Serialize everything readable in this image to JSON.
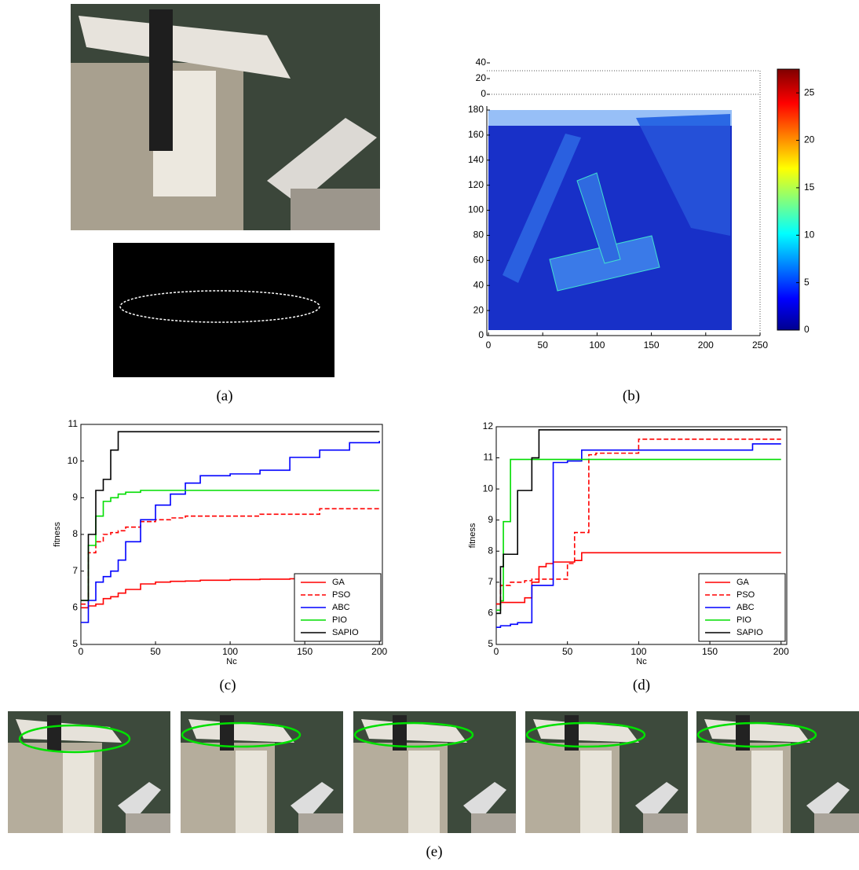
{
  "captions": [
    "(a)",
    "(b)",
    "(c)",
    "(d)",
    "(e)"
  ],
  "chart_data": [
    {
      "type": "surface",
      "xlim": [
        0,
        250
      ],
      "xticks": [
        0,
        50,
        100,
        150,
        200,
        250
      ],
      "ylim": [
        0,
        180
      ],
      "yticks": [
        0,
        20,
        40,
        60,
        80,
        100,
        120,
        140,
        160,
        180
      ],
      "zlim": [
        0,
        40
      ],
      "zticks": [
        0,
        20,
        40
      ],
      "clim": [
        0,
        27.5
      ],
      "cticks": [
        0,
        5,
        10,
        15,
        20,
        25
      ],
      "colormap": "jet"
    },
    {
      "type": "line",
      "step": true,
      "xlabel": "Nc",
      "ylabel": "fitness",
      "xlim": [
        0,
        202
      ],
      "xticks": [
        0,
        50,
        100,
        150,
        200
      ],
      "ylim": [
        5,
        11
      ],
      "yticks": [
        5,
        6,
        7,
        8,
        9,
        10,
        11
      ],
      "legend": "lower right",
      "x": [
        0,
        5,
        10,
        15,
        20,
        25,
        30,
        40,
        50,
        60,
        70,
        80,
        100,
        120,
        140,
        160,
        180,
        200
      ],
      "series": [
        {
          "name": "GA",
          "color": "#ff0000",
          "dash": false,
          "values": [
            6.0,
            6.05,
            6.1,
            6.25,
            6.3,
            6.4,
            6.5,
            6.65,
            6.7,
            6.72,
            6.73,
            6.75,
            6.77,
            6.78,
            6.79,
            6.8,
            6.8,
            6.8
          ]
        },
        {
          "name": "PSO",
          "color": "#ff0000",
          "dash": true,
          "values": [
            6.1,
            7.5,
            7.8,
            8.0,
            8.05,
            8.1,
            8.2,
            8.35,
            8.4,
            8.45,
            8.5,
            8.5,
            8.5,
            8.55,
            8.55,
            8.7,
            8.7,
            8.7
          ]
        },
        {
          "name": "ABC",
          "color": "#0000ff",
          "dash": false,
          "values": [
            5.6,
            6.2,
            6.7,
            6.85,
            7.0,
            7.3,
            7.8,
            8.4,
            8.8,
            9.1,
            9.4,
            9.6,
            9.65,
            9.75,
            10.1,
            10.3,
            10.5,
            10.55
          ]
        },
        {
          "name": "PIO",
          "color": "#00dd00",
          "dash": false,
          "values": [
            6.2,
            7.7,
            8.5,
            8.9,
            9.0,
            9.1,
            9.15,
            9.2,
            9.2,
            9.2,
            9.2,
            9.2,
            9.2,
            9.2,
            9.2,
            9.2,
            9.2,
            9.2
          ]
        },
        {
          "name": "SAPIO",
          "color": "#000000",
          "dash": false,
          "values": [
            6.2,
            8.0,
            9.2,
            9.5,
            10.3,
            10.8,
            10.8,
            10.8,
            10.8,
            10.8,
            10.8,
            10.8,
            10.8,
            10.8,
            10.8,
            10.8,
            10.8,
            10.8
          ]
        }
      ]
    },
    {
      "type": "line",
      "step": true,
      "xlabel": "Nc",
      "ylabel": "fitness",
      "xlim": [
        0,
        204
      ],
      "xticks": [
        0,
        50,
        100,
        150,
        200
      ],
      "ylim": [
        5,
        12
      ],
      "yticks": [
        5,
        6,
        7,
        8,
        9,
        10,
        11,
        12
      ],
      "legend": "lower right",
      "x": [
        0,
        3,
        5,
        10,
        15,
        20,
        25,
        30,
        35,
        40,
        50,
        55,
        60,
        65,
        70,
        100,
        150,
        180,
        200
      ],
      "series": [
        {
          "name": "GA",
          "color": "#ff0000",
          "dash": false,
          "values": [
            6.3,
            6.35,
            6.35,
            6.35,
            6.35,
            6.5,
            7.0,
            7.5,
            7.6,
            7.65,
            7.65,
            7.7,
            7.95,
            7.95,
            7.95,
            7.95,
            7.95,
            7.95,
            7.95
          ]
        },
        {
          "name": "PSO",
          "color": "#ff0000",
          "dash": true,
          "values": [
            6.3,
            6.9,
            6.9,
            7.0,
            7.0,
            7.05,
            7.1,
            7.1,
            7.1,
            7.1,
            7.6,
            8.6,
            8.6,
            11.1,
            11.15,
            11.6,
            11.6,
            11.6,
            11.6
          ]
        },
        {
          "name": "ABC",
          "color": "#0000ff",
          "dash": false,
          "values": [
            5.55,
            5.6,
            5.6,
            5.65,
            5.7,
            5.7,
            6.9,
            6.9,
            6.9,
            10.85,
            10.9,
            10.9,
            11.25,
            11.25,
            11.25,
            11.25,
            11.25,
            11.45,
            11.45
          ]
        },
        {
          "name": "PIO",
          "color": "#00dd00",
          "dash": false,
          "values": [
            6.1,
            6.4,
            8.95,
            10.95,
            10.95,
            10.95,
            10.95,
            10.95,
            10.95,
            10.95,
            10.95,
            10.95,
            10.95,
            10.95,
            10.95,
            10.95,
            10.95,
            10.95,
            10.95
          ]
        },
        {
          "name": "SAPIO",
          "color": "#000000",
          "dash": false,
          "values": [
            6.0,
            7.5,
            7.9,
            7.9,
            9.95,
            9.95,
            11.0,
            11.9,
            11.9,
            11.9,
            11.9,
            11.9,
            11.9,
            11.9,
            11.9,
            11.9,
            11.9,
            11.9,
            11.9
          ]
        }
      ]
    }
  ]
}
